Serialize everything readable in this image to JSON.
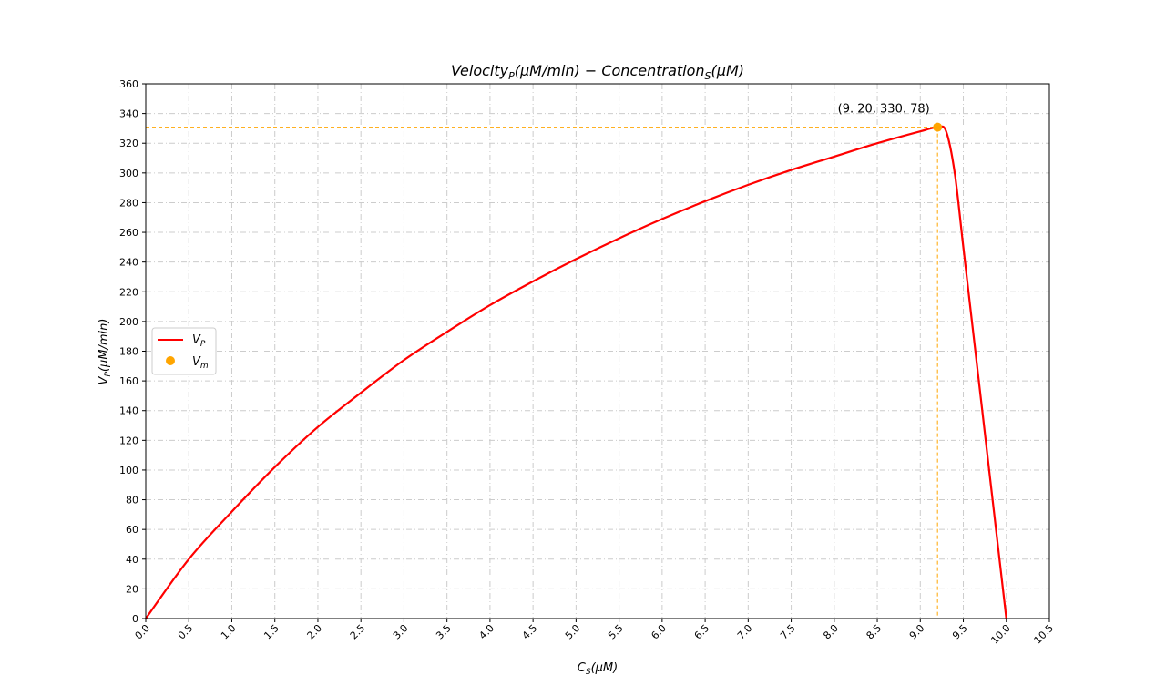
{
  "chart_data": {
    "type": "line",
    "title": "Velocity_P(μM/min) − Concentration_S(μM)",
    "title_parts": {
      "main": "Velocity",
      "sub": "P",
      "mid": "(μM/min) − Concentration",
      "sub2": "S",
      "tail": "(μM)"
    },
    "xlabel": "C_S(μM)",
    "xlabel_parts": {
      "main": "C",
      "sub": "S",
      "tail": "(μM)"
    },
    "ylabel": "V_P(μM/min)",
    "ylabel_parts": {
      "main": "V",
      "sub": "P",
      "tail": "(μM/min)"
    },
    "xlim": [
      0,
      10.5
    ],
    "ylim": [
      0,
      360
    ],
    "x_ticks": [
      "0.0",
      "0.5",
      "1.0",
      "1.5",
      "2.0",
      "2.5",
      "3.0",
      "3.5",
      "4.0",
      "4.5",
      "5.0",
      "5.5",
      "6.0",
      "6.5",
      "7.0",
      "7.5",
      "8.0",
      "8.5",
      "9.0",
      "9.5",
      "10.0",
      "10.5"
    ],
    "y_ticks": [
      "0",
      "20",
      "40",
      "60",
      "80",
      "100",
      "120",
      "140",
      "160",
      "180",
      "200",
      "220",
      "240",
      "260",
      "280",
      "300",
      "320",
      "340",
      "360"
    ],
    "grid": true,
    "legend_position": "center-left",
    "series": [
      {
        "name": "V_P",
        "legend_main": "V",
        "legend_sub": "P",
        "color": "#ff0000",
        "x": [
          0,
          0.5,
          1.0,
          1.5,
          2.0,
          2.5,
          3.0,
          3.5,
          4.0,
          4.5,
          5.0,
          5.5,
          6.0,
          6.5,
          7.0,
          7.5,
          8.0,
          8.5,
          9.0,
          9.2,
          9.3,
          9.4,
          9.5,
          9.6,
          9.7,
          9.8,
          9.9,
          10.0
        ],
        "y": [
          0,
          40,
          72,
          102,
          129,
          152,
          174,
          193,
          211,
          227,
          242,
          256,
          269,
          281,
          292,
          302,
          311,
          320,
          328,
          330.78,
          328,
          300,
          250,
          200,
          150,
          100,
          50,
          0
        ]
      },
      {
        "name": "V_m",
        "legend_main": "V",
        "legend_sub": "m",
        "color": "#ffa500",
        "x": [
          9.2
        ],
        "y": [
          330.78
        ]
      }
    ],
    "annotation": {
      "text": "(9. 20, 330. 78)",
      "x": 9.2,
      "y": 330.78
    },
    "colors": {
      "curve": "#ff0000",
      "marker": "#ffa500",
      "grid": "#cccccc"
    }
  }
}
